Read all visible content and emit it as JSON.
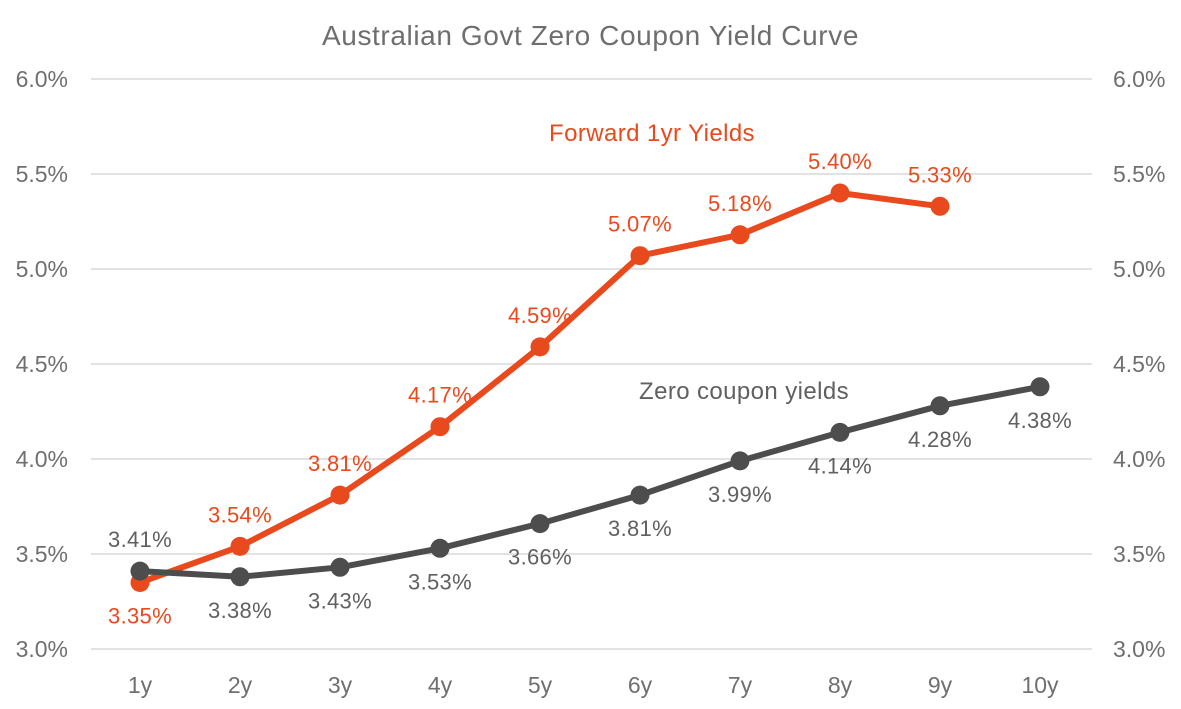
{
  "title": "Australian Govt Zero Coupon Yield Curve",
  "chart_data": {
    "type": "line",
    "title": "Australian Govt Zero Coupon Yield Curve",
    "x_categories": [
      "1y",
      "2y",
      "3y",
      "4y",
      "5y",
      "6y",
      "7y",
      "8y",
      "9y",
      "10y"
    ],
    "y_axis": {
      "min": 3.0,
      "max": 6.0,
      "step": 0.5,
      "tick_labels": [
        "3.0%",
        "3.5%",
        "4.0%",
        "4.5%",
        "5.0%",
        "5.5%",
        "6.0%"
      ],
      "sides": "both"
    },
    "grid": "horizontal",
    "legend_position": "inline-annotations",
    "colors": {
      "grid": "#d9d9d9",
      "axis_text": "#6f6f6f",
      "title_text": "#6e6e6e"
    },
    "series": [
      {
        "name": "Forward 1yr Yields",
        "key": "forward",
        "color": "#e8491d",
        "label_color": "#e8491d",
        "values": [
          3.35,
          3.54,
          3.81,
          4.17,
          4.59,
          5.07,
          5.18,
          5.4,
          5.33
        ],
        "point_labels": [
          "3.35%",
          "3.54%",
          "3.81%",
          "4.17%",
          "4.59%",
          "5.07%",
          "5.18%",
          "5.40%",
          "5.33%"
        ],
        "label_side": [
          "below",
          "above",
          "above",
          "above",
          "above",
          "above",
          "above",
          "above",
          "above"
        ]
      },
      {
        "name": "Zero coupon yields",
        "key": "zero",
        "color": "#4d4d4d",
        "label_color": "#606060",
        "values": [
          3.41,
          3.38,
          3.43,
          3.53,
          3.66,
          3.81,
          3.99,
          4.14,
          4.28,
          4.38
        ],
        "point_labels": [
          "3.41%",
          "3.38%",
          "3.43%",
          "3.53%",
          "3.66%",
          "3.81%",
          "3.99%",
          "4.14%",
          "4.28%",
          "4.38%"
        ],
        "label_side": [
          "above",
          "below",
          "below",
          "below",
          "below",
          "below",
          "below",
          "below",
          "below",
          "below"
        ]
      }
    ]
  }
}
